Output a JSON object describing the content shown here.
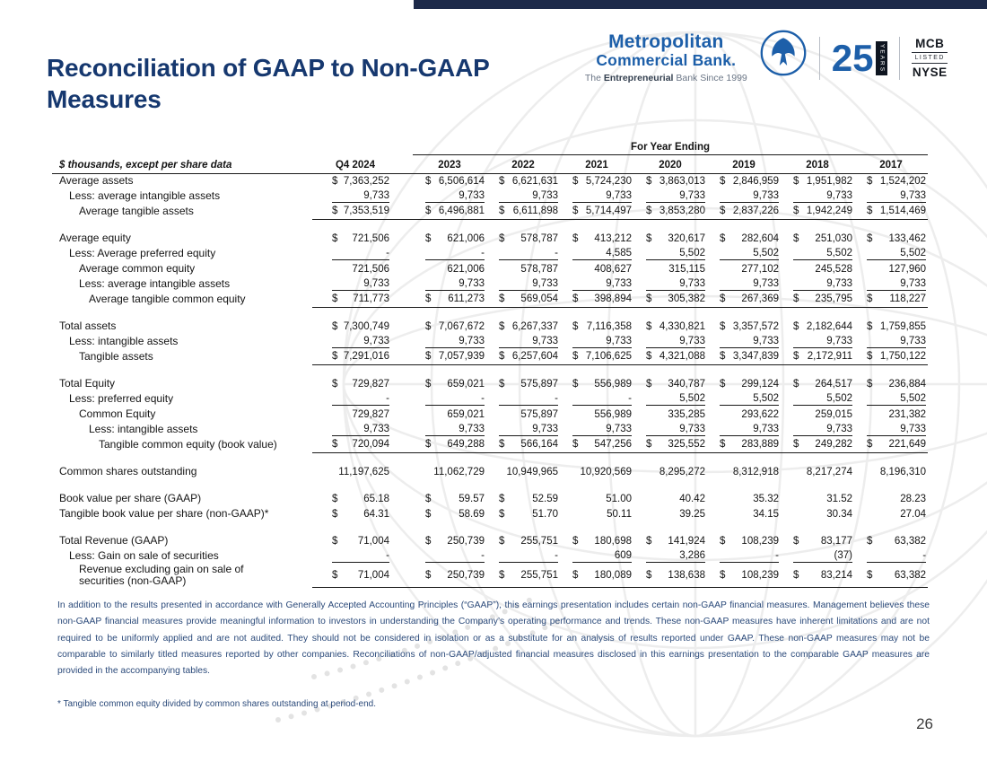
{
  "page": {
    "title_line1": "Reconciliation of GAAP to Non-GAAP",
    "title_line2": "Measures",
    "page_number": "26"
  },
  "logo": {
    "name_line1": "Metropolitan",
    "name_line2": "Commercial Bank.",
    "tagline_prefix": "The ",
    "tagline_bold": "Entrepreneurial",
    "tagline_suffix": " Bank Since 1999",
    "anniversary_number": "25",
    "anniversary_label": "YEARS",
    "exchange_line1": "MCB",
    "exchange_line2": "LISTED",
    "exchange_line3": "NYSE"
  },
  "table": {
    "group_header": "For Year Ending",
    "row_header": "$ thousands, except per share data",
    "columns": [
      "Q4 2024",
      "2023",
      "2022",
      "2021",
      "2020",
      "2019",
      "2018",
      "2017"
    ],
    "rows": [
      {
        "label": "Average assets",
        "indent": 0,
        "style": "plain",
        "values": [
          "$ 7,363,252",
          "$ 6,506,614",
          "$ 6,621,631",
          "$ 5,724,230",
          "$ 3,863,013",
          "$ 2,846,959",
          "$ 1,951,982",
          "$ 1,524,202"
        ]
      },
      {
        "label": "Less: average intangible assets",
        "indent": 1,
        "style": "rule",
        "values": [
          "9,733",
          "9,733",
          "9,733",
          "9,733",
          "9,733",
          "9,733",
          "9,733",
          "9,733"
        ]
      },
      {
        "label": "Average tangible assets",
        "indent": 2,
        "style": "total",
        "values": [
          "$ 7,353,519",
          "$ 6,496,881",
          "$ 6,611,898",
          "$ 5,714,497",
          "$ 3,853,280",
          "$ 2,837,226",
          "$ 1,942,249",
          "$ 1,514,469"
        ]
      },
      {
        "style": "spacer"
      },
      {
        "label": "Average equity",
        "indent": 0,
        "style": "plain",
        "values": [
          "$ 721,506",
          "$ 621,006",
          "$ 578,787",
          "$ 413,212",
          "$ 320,617",
          "$ 282,604",
          "$ 251,030",
          "$ 133,462"
        ]
      },
      {
        "label": "Less: Average preferred equity",
        "indent": 1,
        "style": "rule",
        "values": [
          "-",
          "-",
          "-",
          "4,585",
          "5,502",
          "5,502",
          "5,502",
          "5,502"
        ]
      },
      {
        "label": "Average common equity",
        "indent": 2,
        "style": "plain",
        "values": [
          "721,506",
          "621,006",
          "578,787",
          "408,627",
          "315,115",
          "277,102",
          "245,528",
          "127,960"
        ]
      },
      {
        "label": "Less: average intangible assets",
        "indent": 2,
        "style": "rule",
        "values": [
          "9,733",
          "9,733",
          "9,733",
          "9,733",
          "9,733",
          "9,733",
          "9,733",
          "9,733"
        ]
      },
      {
        "label": "Average tangible common equity",
        "indent": 3,
        "style": "total",
        "values": [
          "$ 711,773",
          "$ 611,273",
          "$ 569,054",
          "$ 398,894",
          "$ 305,382",
          "$ 267,369",
          "$ 235,795",
          "$ 118,227"
        ]
      },
      {
        "style": "spacer"
      },
      {
        "label": "Total assets",
        "indent": 0,
        "style": "plain",
        "values": [
          "$ 7,300,749",
          "$ 7,067,672",
          "$ 6,267,337",
          "$ 7,116,358",
          "$ 4,330,821",
          "$ 3,357,572",
          "$ 2,182,644",
          "$ 1,759,855"
        ]
      },
      {
        "label": "Less: intangible assets",
        "indent": 1,
        "style": "rule",
        "values": [
          "9,733",
          "9,733",
          "9,733",
          "9,733",
          "9,733",
          "9,733",
          "9,733",
          "9,733"
        ]
      },
      {
        "label": "Tangible assets",
        "indent": 2,
        "style": "total",
        "values": [
          "$ 7,291,016",
          "$ 7,057,939",
          "$ 6,257,604",
          "$ 7,106,625",
          "$ 4,321,088",
          "$ 3,347,839",
          "$ 2,172,911",
          "$ 1,750,122"
        ]
      },
      {
        "style": "spacer"
      },
      {
        "label": "Total Equity",
        "indent": 0,
        "style": "plain",
        "values": [
          "$ 729,827",
          "$ 659,021",
          "$ 575,897",
          "$ 556,989",
          "$ 340,787",
          "$ 299,124",
          "$ 264,517",
          "$ 236,884"
        ]
      },
      {
        "label": "Less: preferred equity",
        "indent": 1,
        "style": "rule",
        "values": [
          "-",
          "-",
          "-",
          "-",
          "5,502",
          "5,502",
          "5,502",
          "5,502"
        ]
      },
      {
        "label": "Common Equity",
        "indent": 2,
        "style": "plain",
        "values": [
          "729,827",
          "659,021",
          "575,897",
          "556,989",
          "335,285",
          "293,622",
          "259,015",
          "231,382"
        ]
      },
      {
        "label": "Less: intangible assets",
        "indent": 3,
        "style": "rule",
        "values": [
          "9,733",
          "9,733",
          "9,733",
          "9,733",
          "9,733",
          "9,733",
          "9,733",
          "9,733"
        ]
      },
      {
        "label": "Tangible common equity (book value)",
        "indent": 4,
        "style": "total",
        "values": [
          "$ 720,094",
          "$ 649,288",
          "$ 566,164",
          "$ 547,256",
          "$ 325,552",
          "$ 283,889",
          "$ 249,282",
          "$ 221,649"
        ]
      },
      {
        "style": "spacer"
      },
      {
        "label": "Common shares outstanding",
        "indent": 0,
        "style": "plain",
        "values": [
          "11,197,625",
          "11,062,729",
          "10,949,965",
          "10,920,569",
          "8,295,272",
          "8,312,918",
          "8,217,274",
          "8,196,310"
        ]
      },
      {
        "style": "spacer"
      },
      {
        "label": "Book value per share (GAAP)",
        "indent": 0,
        "style": "plain",
        "values": [
          "$ 65.18",
          "$ 59.57",
          "$ 52.59",
          "51.00",
          "40.42",
          "35.32",
          "31.52",
          "28.23"
        ]
      },
      {
        "label": "Tangible book value per share (non-GAAP)*",
        "indent": 0,
        "style": "plain",
        "values": [
          "$ 64.31",
          "$ 58.69",
          "$ 51.70",
          "50.11",
          "39.25",
          "34.15",
          "30.34",
          "27.04"
        ]
      },
      {
        "style": "spacer"
      },
      {
        "label": "Total Revenue (GAAP)",
        "indent": 0,
        "style": "plain",
        "values": [
          "$ 71,004",
          "$ 250,739",
          "$ 255,751",
          "$ 180,698",
          "$ 141,924",
          "$ 108,239",
          "$ 83,177",
          "$ 63,382"
        ]
      },
      {
        "label": "Less: Gain on sale of securities",
        "indent": 1,
        "style": "rule",
        "values": [
          "-",
          "-",
          "-",
          "609",
          "3,286",
          "-",
          "(37)",
          "-"
        ]
      },
      {
        "label": "Revenue excluding gain on sale of\nsecurities (non-GAAP)",
        "indent": 2,
        "style": "total",
        "values": [
          "$ 71,004",
          "$ 250,739",
          "$ 255,751",
          "$ 180,089",
          "$ 138,638",
          "$ 108,239",
          "$ 83,214",
          "$ 63,382"
        ]
      }
    ]
  },
  "footnotes": {
    "disclaimer": "In addition to the results presented in accordance with Generally Accepted Accounting Principles (“GAAP”), this earnings presentation includes certain non-GAAP financial measures. Management believes these non-GAAP financial measures provide meaningful information to investors in understanding the Company’s operating performance and trends. These non-GAAP measures have inherent limitations and are not required to be uniformly applied and are not audited. They should not be considered in isolation or as a substitute for an analysis of results reported under GAAP. These non-GAAP measures may not be comparable to similarly titled measures reported by other companies. Reconciliations of non-GAAP/adjusted financial measures disclosed in this earnings presentation to the comparable GAAP measures are provided in the accompanying tables.",
    "asterisk_note": "* Tangible common equity divided by common shares outstanding at period-end."
  },
  "colors": {
    "title_navy": "#16386f",
    "brand_blue": "#1d5fa9",
    "accent_bar": "#1d2a4a",
    "footer_text": "#2b4a7a"
  }
}
